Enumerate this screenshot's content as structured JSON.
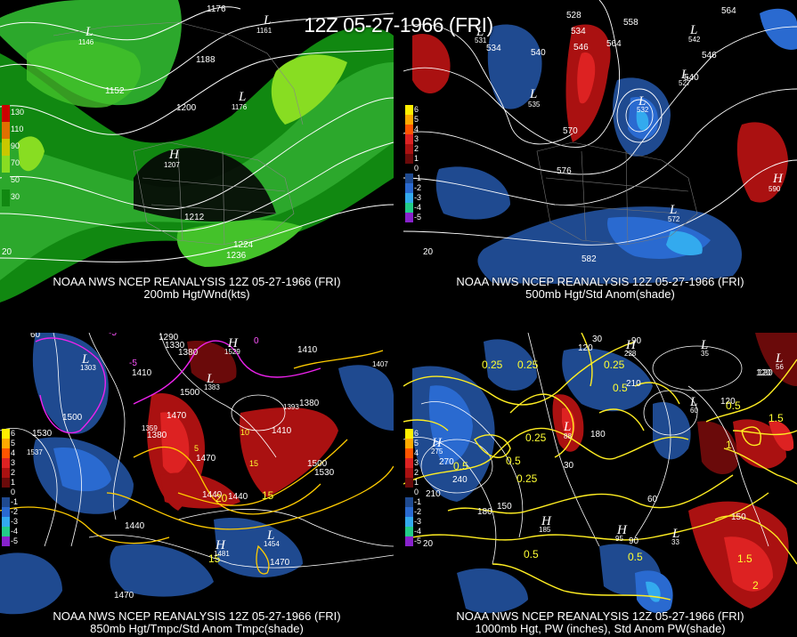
{
  "title": "12Z 05-27-1966 (FRI)",
  "panels": [
    {
      "caption_line1": "NOAA NWS NCEP REANALYSIS 12Z 05-27-1966 (FRI)",
      "caption_line2": "200mb Hgt/Wnd(kts)",
      "legend": [
        {
          "label": "130",
          "color": "#cc0000"
        },
        {
          "label": "110",
          "color": "#e07000"
        },
        {
          "label": "90",
          "color": "#c8c800"
        },
        {
          "label": "70",
          "color": "#88dd22"
        },
        {
          "label": "50",
          "color": "#2ca82c"
        },
        {
          "label": "30",
          "color": "#118811"
        }
      ],
      "height_labels": [
        "1176",
        "1188",
        "1152",
        "1200",
        "1212",
        "1224",
        "1236"
      ],
      "pressure_centers": [
        {
          "type": "L",
          "value": "1146"
        },
        {
          "type": "L",
          "value": "1161"
        },
        {
          "type": "L",
          "value": "1176"
        },
        {
          "type": "H",
          "value": "1207"
        }
      ],
      "corner_label": "20"
    },
    {
      "caption_line1": "NOAA NWS NCEP REANALYSIS 12Z 05-27-1966 (FRI)",
      "caption_line2": "500mb Hgt/Std Anom(shade)",
      "legend": [
        {
          "label": "6",
          "color": "#ffee00"
        },
        {
          "label": "5",
          "color": "#ffaa00"
        },
        {
          "label": "4",
          "color": "#ff5500"
        },
        {
          "label": "3",
          "color": "#dd2222"
        },
        {
          "label": "2",
          "color": "#aa1111"
        },
        {
          "label": "1",
          "color": "#6a0a0a"
        },
        {
          "label": "0",
          "color": "#000000"
        },
        {
          "label": "-1",
          "color": "#1f4a90"
        },
        {
          "label": "-2",
          "color": "#2a6ad0"
        },
        {
          "label": "-3",
          "color": "#33aaee"
        },
        {
          "label": "-4",
          "color": "#22cc88"
        },
        {
          "label": "-5",
          "color": "#8822cc"
        }
      ],
      "height_labels": [
        "528",
        "534",
        "558",
        "564",
        "546",
        "540",
        "564",
        "546",
        "540",
        "570",
        "534",
        "576",
        "582"
      ],
      "pressure_centers": [
        {
          "type": "L",
          "value": "531"
        },
        {
          "type": "L",
          "value": "535"
        },
        {
          "type": "L",
          "value": "532"
        },
        {
          "type": "L",
          "value": "542"
        },
        {
          "type": "L",
          "value": "527"
        },
        {
          "type": "L",
          "value": "572"
        },
        {
          "type": "H",
          "value": "590"
        }
      ],
      "corner_label": "20"
    },
    {
      "caption_line1": "NOAA NWS NCEP REANALYSIS 12Z 05-27-1966 (FRI)",
      "caption_line2": "850mb Hgt/Tmpc/Std Anom Tmpc(shade)",
      "legend": [
        {
          "label": "6",
          "color": "#ffee00"
        },
        {
          "label": "5",
          "color": "#ffaa00"
        },
        {
          "label": "4",
          "color": "#ff5500"
        },
        {
          "label": "3",
          "color": "#dd2222"
        },
        {
          "label": "2",
          "color": "#aa1111"
        },
        {
          "label": "1",
          "color": "#6a0a0a"
        },
        {
          "label": "0",
          "color": "#000000"
        },
        {
          "label": "-1",
          "color": "#1f4a90"
        },
        {
          "label": "-2",
          "color": "#2a6ad0"
        },
        {
          "label": "-3",
          "color": "#33aaee"
        },
        {
          "label": "-4",
          "color": "#22cc88"
        },
        {
          "label": "-5",
          "color": "#8822cc"
        }
      ],
      "height_labels": [
        "1290",
        "1330",
        "1380",
        "1410",
        "1500",
        "1530",
        "1470",
        "1380",
        "1500",
        "1410",
        "1440",
        "1470",
        "1530",
        "1500",
        "1440",
        "1470",
        "1410",
        "1380",
        "1470",
        "1440"
      ],
      "temperature_labels": [
        "-5",
        "-5",
        "0",
        "5",
        "10",
        "15",
        "20",
        "15",
        "15"
      ],
      "pressure_centers": [
        {
          "type": "L",
          "value": "1303"
        },
        {
          "type": "H",
          "value": "1529"
        },
        {
          "type": "L",
          "value": "1383"
        },
        {
          "type": "H",
          "value": "1537"
        },
        {
          "type": "L",
          "value": "1454"
        },
        {
          "type": "H",
          "value": "1481"
        },
        {
          "type": "L",
          "value": "1393"
        },
        {
          "type": "L",
          "value": "1359"
        },
        {
          "type": "H",
          "value": "1407"
        }
      ],
      "corner_label": "60"
    },
    {
      "caption_line1": "NOAA NWS NCEP REANALYSIS 12Z 05-27-1966 (FRI)",
      "caption_line2": "1000mb Hgt, PW (inches), Std Anom PW(shade)",
      "legend": [
        {
          "label": "6",
          "color": "#ffee00"
        },
        {
          "label": "5",
          "color": "#ffaa00"
        },
        {
          "label": "4",
          "color": "#ff5500"
        },
        {
          "label": "3",
          "color": "#dd2222"
        },
        {
          "label": "2",
          "color": "#aa1111"
        },
        {
          "label": "1",
          "color": "#6a0a0a"
        },
        {
          "label": "0",
          "color": "#000000"
        },
        {
          "label": "-1",
          "color": "#1f4a90"
        },
        {
          "label": "-2",
          "color": "#2a6ad0"
        },
        {
          "label": "-3",
          "color": "#33aaee"
        },
        {
          "label": "-4",
          "color": "#22cc88"
        },
        {
          "label": "-5",
          "color": "#8822cc"
        }
      ],
      "height_labels": [
        "30",
        "120",
        "90",
        "120",
        "210",
        "270",
        "240",
        "210",
        "180",
        "150",
        "180",
        "30",
        "60",
        "90",
        "120",
        "150",
        "120"
      ],
      "pw_labels": [
        "0.25",
        "0.25",
        "0.25",
        "0.5",
        "0.5",
        "0.5",
        "0.25",
        "0.25",
        "0.5",
        "0.5",
        "0.5",
        "1",
        "1.5",
        "1.5",
        "2"
      ],
      "pressure_centers": [
        {
          "type": "H",
          "value": "228"
        },
        {
          "type": "L",
          "value": "35"
        },
        {
          "type": "L",
          "value": "56"
        },
        {
          "type": "H",
          "value": "275"
        },
        {
          "type": "L",
          "value": "88"
        },
        {
          "type": "L",
          "value": "60"
        },
        {
          "type": "H",
          "value": "185"
        },
        {
          "type": "H",
          "value": "95"
        },
        {
          "type": "L",
          "value": "33"
        }
      ],
      "corner_label": "20"
    }
  ]
}
